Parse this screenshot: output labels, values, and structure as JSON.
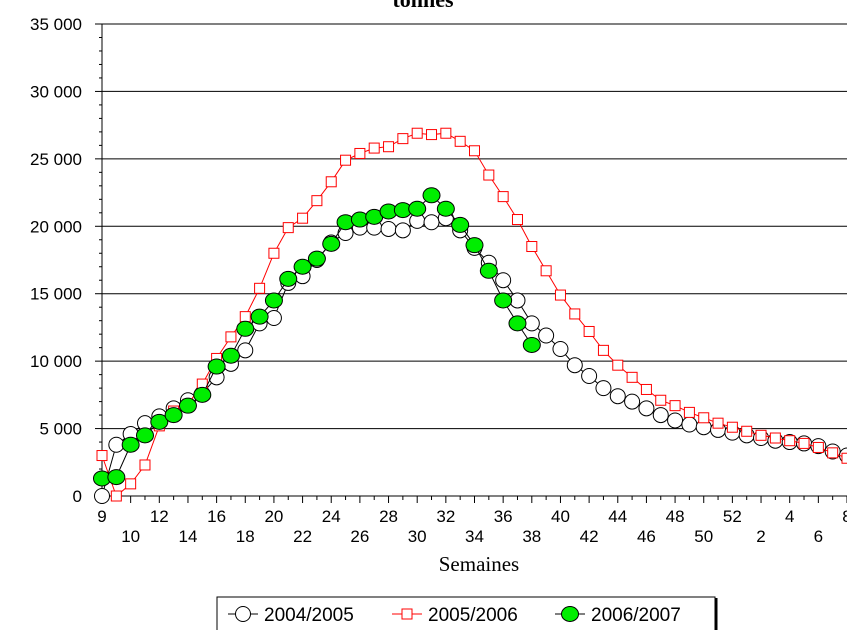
{
  "chart_data": {
    "type": "line",
    "title": "tonnes",
    "xlabel": "Semaines",
    "ylabel": "",
    "ylim": [
      0,
      35000
    ],
    "y_ticks": [
      "0",
      "5 000",
      "10 000",
      "15 000",
      "20 000",
      "25 000",
      "30 000",
      "35 000"
    ],
    "x_ticks_odd": [
      "9",
      "12",
      "16",
      "20",
      "24",
      "28",
      "32",
      "36",
      "40",
      "44",
      "48",
      "52",
      "4",
      "8"
    ],
    "x_ticks_even": [
      "10",
      "14",
      "18",
      "22",
      "26",
      "30",
      "34",
      "38",
      "42",
      "46",
      "50",
      "2",
      "6"
    ],
    "x_weeks": [
      9,
      10,
      11,
      12,
      13,
      14,
      15,
      16,
      17,
      18,
      19,
      20,
      21,
      22,
      23,
      24,
      25,
      26,
      27,
      28,
      29,
      30,
      31,
      32,
      33,
      34,
      35,
      36,
      37,
      38,
      39,
      40,
      41,
      42,
      43,
      44,
      45,
      46,
      47,
      48,
      49,
      50,
      51,
      52,
      1,
      2,
      3,
      4,
      5,
      6,
      7,
      8,
      9
    ],
    "grid": "horizontal",
    "legend_position": "bottom",
    "series": [
      {
        "name": "2004/2005",
        "color": "#000000",
        "marker": "open-circle",
        "values": [
          0,
          3800,
          4600,
          5400,
          5900,
          6500,
          7100,
          7600,
          8800,
          9800,
          10800,
          12800,
          13200,
          15800,
          16300,
          17500,
          18800,
          19500,
          19900,
          19900,
          19800,
          19700,
          20400,
          20300,
          20600,
          19700,
          18400,
          17300,
          16000,
          14500,
          12800,
          11900,
          10900,
          9700,
          8900,
          8000,
          7400,
          7000,
          6500,
          6000,
          5600,
          5300,
          5100,
          4900,
          4700,
          4500,
          4300,
          4100,
          4000,
          3900,
          3700,
          3300,
          3000
        ]
      },
      {
        "name": "2005/2006",
        "color": "#ff0000",
        "marker": "open-square",
        "values": [
          3000,
          0,
          900,
          2300,
          5200,
          6300,
          6800,
          8300,
          10200,
          11800,
          13300,
          15400,
          18000,
          19900,
          20600,
          21900,
          23300,
          24900,
          25400,
          25800,
          25900,
          26500,
          26900,
          26800,
          26900,
          26300,
          25600,
          23800,
          22200,
          20500,
          18500,
          16700,
          14900,
          13500,
          12200,
          10800,
          9700,
          8800,
          7900,
          7100,
          6700,
          6200,
          5800,
          5400,
          5100,
          4800,
          4500,
          4300,
          4100,
          3900,
          3600,
          3200,
          2800
        ]
      },
      {
        "name": "2006/2007",
        "color": "#00ee00",
        "marker": "filled-circle",
        "values": [
          1300,
          1400,
          3800,
          4500,
          5500,
          6000,
          6700,
          7500,
          9600,
          10400,
          12400,
          13300,
          14500,
          16100,
          17000,
          17600,
          18700,
          20300,
          20500,
          20700,
          21100,
          21200,
          21300,
          22300,
          21300,
          20100,
          18600,
          16700,
          14500,
          12800,
          11200
        ]
      }
    ]
  }
}
